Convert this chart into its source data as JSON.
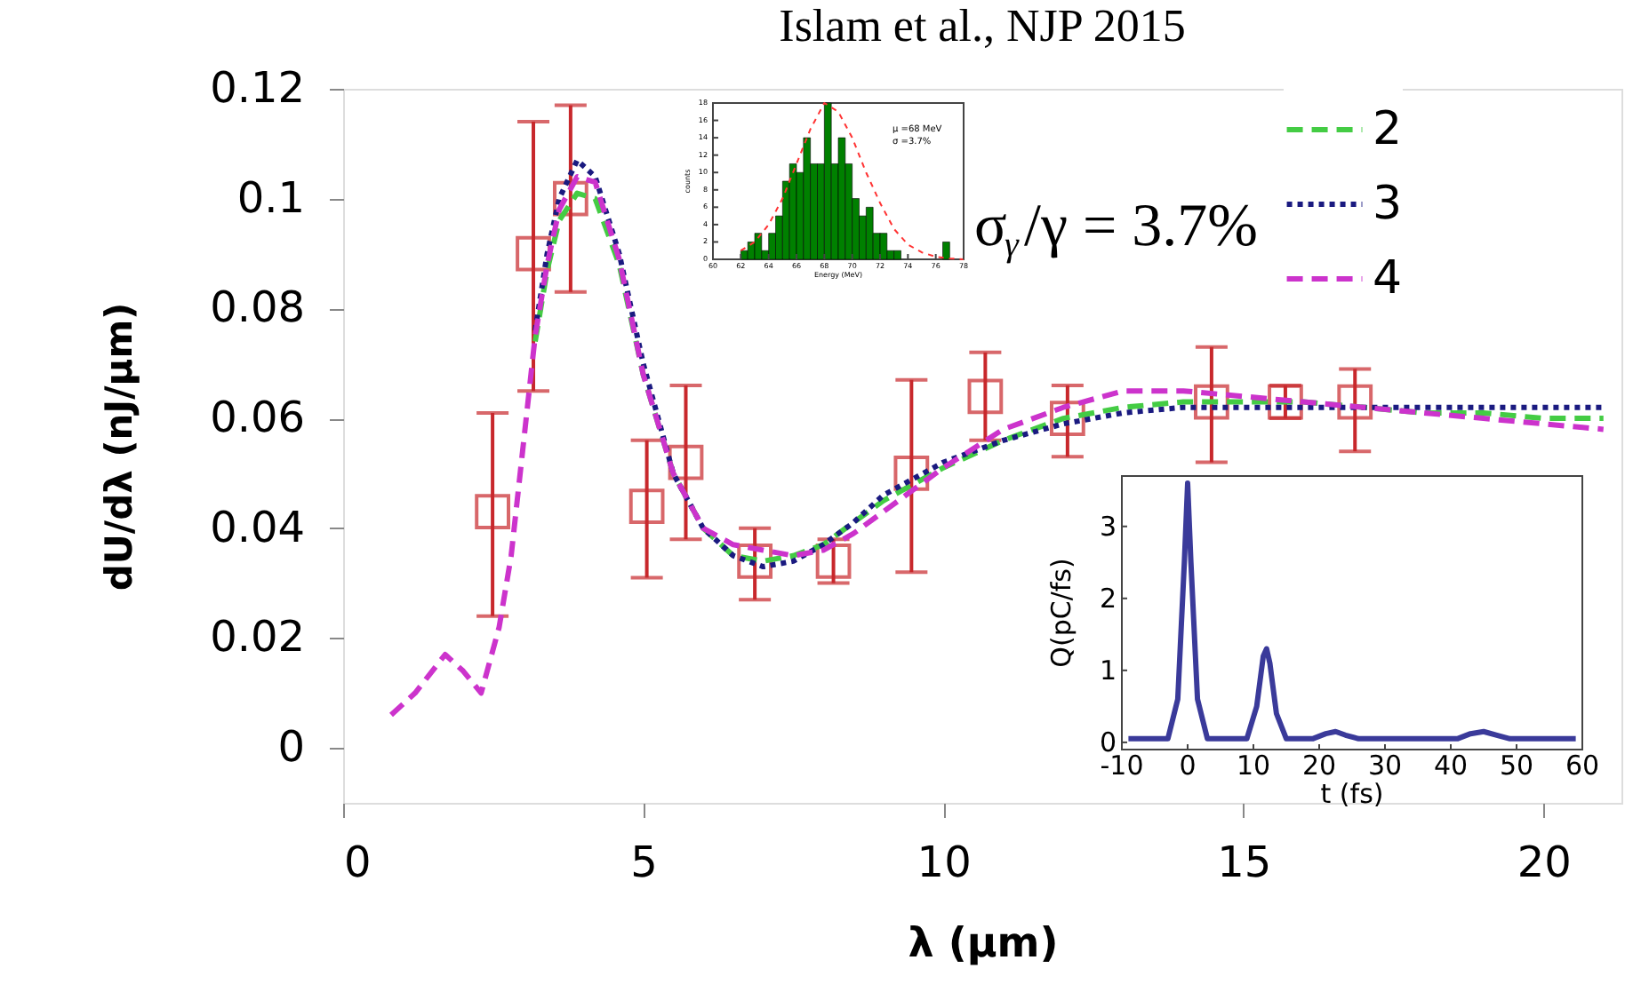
{
  "chart_data": [
    {
      "type": "line",
      "title": "Islam et al., NJP 2015",
      "xlabel": "λ (μm)",
      "ylabel": "dU/dλ (nJ/μm)",
      "xlim": [
        0,
        21.3
      ],
      "ylim": [
        -0.01,
        0.12
      ],
      "xticks": [
        0,
        5,
        10,
        15,
        20
      ],
      "yticks": [
        0,
        0.02,
        0.04,
        0.06,
        0.08,
        0.1,
        0.12
      ],
      "legend": "top right",
      "annotations": [
        "σ$_{γ}$/γ = 3.7%"
      ],
      "series": [
        {
          "type": "scatter",
          "color": "#c8282c",
          "marker": "square",
          "x": [
            2.49,
            3.17,
            3.79,
            5.06,
            5.71,
            6.86,
            8.17,
            9.47,
            10.7,
            12.07,
            14.47,
            15.7,
            16.86
          ],
          "values": [
            0.043,
            0.09,
            0.1,
            0.044,
            0.052,
            0.034,
            0.034,
            0.05,
            0.064,
            0.06,
            0.063,
            0.063,
            0.063
          ],
          "errors": [
            [
              0.024,
              0.061
            ],
            [
              0.065,
              0.114
            ],
            [
              0.083,
              0.117
            ],
            [
              0.031,
              0.056
            ],
            [
              0.038,
              0.066
            ],
            [
              0.027,
              0.04
            ],
            [
              0.03,
              0.038
            ],
            [
              0.032,
              0.067
            ],
            [
              0.056,
              0.072
            ],
            [
              0.053,
              0.066
            ],
            [
              0.052,
              0.073
            ],
            [
              0.06,
              0.066
            ],
            [
              0.054,
              0.069
            ]
          ]
        },
        {
          "name": "2",
          "type": "line",
          "color": "#44cc44",
          "line_style": "dashed",
          "x": [
            3.2,
            3.4,
            3.6,
            3.9,
            4.2,
            4.6,
            5.0,
            5.5,
            6.0,
            6.5,
            7.0,
            7.5,
            8.0,
            8.5,
            9.0,
            10,
            11,
            12,
            13,
            14,
            15,
            16,
            17,
            18,
            19,
            20,
            21
          ],
          "values": [
            0.074,
            0.087,
            0.096,
            0.101,
            0.1,
            0.088,
            0.068,
            0.05,
            0.04,
            0.035,
            0.034,
            0.035,
            0.037,
            0.041,
            0.045,
            0.051,
            0.056,
            0.06,
            0.062,
            0.063,
            0.063,
            0.063,
            0.062,
            0.061,
            0.061,
            0.06,
            0.06
          ]
        },
        {
          "name": "3",
          "type": "line",
          "color": "#1a1a80",
          "line_style": "dotted",
          "x": [
            3.2,
            3.4,
            3.6,
            3.9,
            4.2,
            4.6,
            5.0,
            5.5,
            6.0,
            6.5,
            7.0,
            7.5,
            8.0,
            8.5,
            9.0,
            10,
            11,
            12,
            13,
            14,
            15,
            16,
            17,
            18,
            19,
            20,
            21
          ],
          "values": [
            0.076,
            0.09,
            0.1,
            0.107,
            0.104,
            0.09,
            0.07,
            0.05,
            0.04,
            0.035,
            0.033,
            0.034,
            0.037,
            0.041,
            0.046,
            0.052,
            0.056,
            0.059,
            0.061,
            0.062,
            0.062,
            0.062,
            0.062,
            0.062,
            0.062,
            0.062,
            0.062
          ]
        },
        {
          "name": "4",
          "type": "line",
          "color": "#cc33cc",
          "line_style": "dashed",
          "x": [
            0.8,
            1.2,
            1.7,
            2.0,
            2.3,
            2.6,
            2.8,
            3.0,
            3.2,
            3.4,
            3.6,
            3.9,
            4.2,
            4.6,
            5.0,
            5.5,
            6.0,
            6.5,
            7.0,
            7.5,
            8.0,
            8.5,
            9.0,
            10,
            11,
            12,
            13,
            14,
            15,
            16,
            17,
            18,
            19,
            20,
            21
          ],
          "values": [
            0.006,
            0.01,
            0.017,
            0.014,
            0.01,
            0.022,
            0.035,
            0.055,
            0.075,
            0.088,
            0.098,
            0.104,
            0.103,
            0.089,
            0.068,
            0.05,
            0.04,
            0.037,
            0.036,
            0.035,
            0.036,
            0.039,
            0.043,
            0.051,
            0.058,
            0.062,
            0.065,
            0.065,
            0.064,
            0.063,
            0.062,
            0.061,
            0.06,
            0.059,
            0.058
          ]
        }
      ]
    },
    {
      "type": "histogram",
      "xlabel": "Energy (MeV)",
      "ylabel": "counts",
      "xlim": [
        60,
        78
      ],
      "ylim": [
        0,
        18
      ],
      "xticks": [
        60,
        62,
        64,
        66,
        68,
        70,
        72,
        74,
        76,
        78
      ],
      "yticks": [
        0,
        2,
        4,
        6,
        8,
        10,
        12,
        14,
        16,
        18
      ],
      "color": "#008000",
      "annotations": [
        "μ =68 MeV",
        "σ =3.7%"
      ],
      "bins": [
        62,
        62.5,
        63,
        63.5,
        64,
        64.5,
        65,
        65.5,
        66,
        66.5,
        67,
        67.5,
        68,
        68.5,
        69,
        69.5,
        70,
        70.5,
        71,
        71.5,
        72,
        72.5,
        73,
        73.5,
        74,
        74.5,
        75,
        75.5,
        76,
        76.5,
        77
      ],
      "values": [
        1,
        2,
        3,
        1,
        3,
        5,
        9,
        11,
        10,
        14,
        11,
        11,
        18,
        11,
        14,
        11,
        7,
        5,
        6,
        3,
        3,
        1,
        1,
        0,
        0,
        0,
        0,
        0,
        0,
        2
      ],
      "series": [
        {
          "type": "line",
          "color": "#ff3333",
          "line_style": "dotted",
          "x": [
            62,
            63,
            64,
            65,
            66,
            67,
            68,
            69,
            70,
            71,
            72,
            73,
            74,
            75,
            76,
            77,
            78
          ],
          "values": [
            1,
            2,
            4,
            7,
            11,
            15,
            18,
            17,
            14,
            10,
            6.5,
            3.5,
            1.7,
            0.8,
            0.3,
            0.1,
            0
          ]
        }
      ]
    },
    {
      "type": "line",
      "xlabel": "t (fs)",
      "ylabel": "Q(pC/fs)",
      "xlim": [
        -10,
        60
      ],
      "ylim": [
        -0.1,
        3.7
      ],
      "xticks": [
        -10,
        0,
        10,
        20,
        30,
        40,
        50,
        60
      ],
      "yticks": [
        0,
        1,
        2,
        3
      ],
      "series": [
        {
          "color": "#3a3a9a",
          "x": [
            -9,
            -3,
            -1.5,
            -0.5,
            0,
            0.5,
            1.5,
            3,
            9,
            10.5,
            11.5,
            12,
            12.5,
            13.5,
            15,
            19,
            21,
            22.5,
            24,
            26,
            41,
            43,
            45,
            47,
            49,
            59
          ],
          "values": [
            0.05,
            0.05,
            0.6,
            2.5,
            3.6,
            2.5,
            0.6,
            0.05,
            0.05,
            0.5,
            1.2,
            1.3,
            1.1,
            0.4,
            0.05,
            0.05,
            0.12,
            0.15,
            0.1,
            0.05,
            0.05,
            0.12,
            0.15,
            0.1,
            0.05,
            0.05
          ]
        }
      ]
    }
  ]
}
